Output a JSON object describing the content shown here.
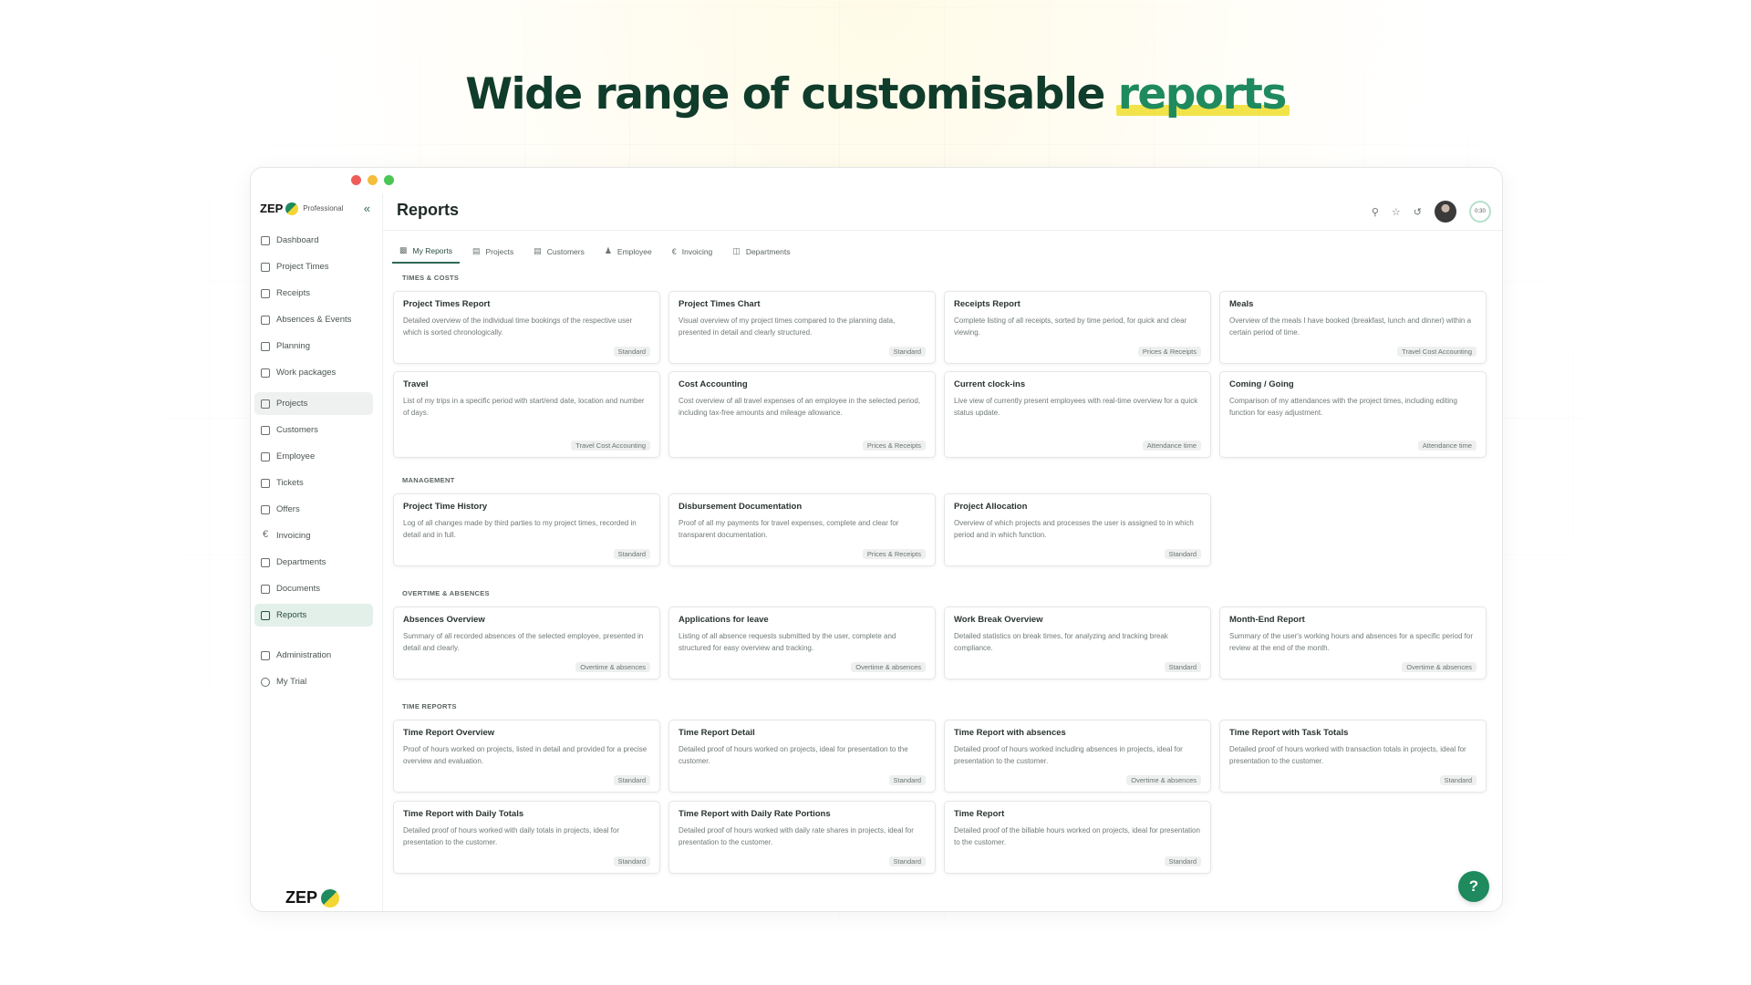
{
  "headline": {
    "prefix": "Wide range of customisable ",
    "highlight": "reports"
  },
  "brand": {
    "name": "ZEP",
    "plan": "Professional",
    "bottom_logo": "ZEP"
  },
  "sidebar": {
    "items": [
      {
        "label": "Dashboard",
        "icon": "grid-icon"
      },
      {
        "label": "Project Times",
        "icon": "clock-calendar-icon"
      },
      {
        "label": "Receipts",
        "icon": "receipt-icon"
      },
      {
        "label": "Absences & Events",
        "icon": "calendar-icon"
      },
      {
        "label": "Planning",
        "icon": "planning-icon"
      },
      {
        "label": "Work packages",
        "icon": "layers-icon"
      },
      {
        "label": "Projects",
        "icon": "projects-icon"
      },
      {
        "label": "Customers",
        "icon": "customers-icon"
      },
      {
        "label": "Employee",
        "icon": "employee-icon"
      },
      {
        "label": "Tickets",
        "icon": "tickets-icon"
      },
      {
        "label": "Offers",
        "icon": "offers-icon"
      },
      {
        "label": "Invoicing",
        "icon": "euro-icon"
      },
      {
        "label": "Departments",
        "icon": "departments-icon"
      },
      {
        "label": "Documents",
        "icon": "folder-icon"
      },
      {
        "label": "Reports",
        "icon": "chart-icon"
      },
      {
        "label": "Administration",
        "icon": "admin-icon"
      },
      {
        "label": "My Trial",
        "icon": "trial-icon"
      }
    ]
  },
  "page": {
    "title": "Reports",
    "timer": "0:30"
  },
  "tabs": [
    {
      "label": "My Reports",
      "icon": "chart-icon"
    },
    {
      "label": "Projects",
      "icon": "projects-icon"
    },
    {
      "label": "Customers",
      "icon": "customers-icon"
    },
    {
      "label": "Employee",
      "icon": "employee-icon"
    },
    {
      "label": "Invoicing",
      "icon": "euro-icon"
    },
    {
      "label": "Departments",
      "icon": "departments-icon"
    }
  ],
  "sections": [
    {
      "label": "TIMES & COSTS",
      "cards": [
        {
          "title": "Project Times Report",
          "desc": "Detailed overview of the individual time bookings of the respective user which is sorted chronologically.",
          "badge": "Standard"
        },
        {
          "title": "Project Times Chart",
          "desc": "Visual overview of my project times compared to the planning data, presented in detail and clearly structured.",
          "badge": "Standard"
        },
        {
          "title": "Receipts Report",
          "desc": "Complete listing of all receipts, sorted by time period, for quick and clear viewing.",
          "badge": "Prices & Receipts"
        },
        {
          "title": "Meals",
          "desc": "Overview of the meals I have booked (breakfast, lunch and dinner) within a certain period of time.",
          "badge": "Travel Cost Accounting"
        },
        {
          "title": "Travel",
          "desc": "List of my trips in a specific period with start/end date, location and number of days.",
          "badge": "Travel Cost Accounting"
        },
        {
          "title": "Cost Accounting",
          "desc": "Cost overview of all travel expenses of an employee in the selected period, including tax-free amounts and mileage allowance.",
          "badge": "Prices & Receipts"
        },
        {
          "title": "Current clock-ins",
          "desc": "Live view of currently present employees with real-time overview for a quick status update.",
          "badge": "Attendance time"
        },
        {
          "title": "Coming / Going",
          "desc": "Comparison of my attendances with the project times, including editing function for easy adjustment.",
          "badge": "Attendance time"
        }
      ]
    },
    {
      "label": "MANAGEMENT",
      "cards": [
        {
          "title": "Project Time History",
          "desc": "Log of all changes made by third parties to my project times, recorded in detail and in full.",
          "badge": "Standard"
        },
        {
          "title": "Disbursement Documentation",
          "desc": "Proof of all my payments for travel expenses, complete and clear for transparent documentation.",
          "badge": "Prices & Receipts"
        },
        {
          "title": "Project Allocation",
          "desc": "Overview of which projects and processes the user is assigned to in which period and in which function.",
          "badge": "Standard"
        }
      ]
    },
    {
      "label": "OVERTIME & ABSENCES",
      "cards": [
        {
          "title": "Absences Overview",
          "desc": "Summary of all recorded absences of the selected employee, presented in detail and clearly.",
          "badge": "Overtime & absences"
        },
        {
          "title": "Applications for leave",
          "desc": "Listing of all absence requests submitted by the user, complete and structured for easy overview and tracking.",
          "badge": "Overtime & absences"
        },
        {
          "title": "Work Break Overview",
          "desc": "Detailed statistics on break times, for analyzing and tracking break compliance.",
          "badge": "Standard"
        },
        {
          "title": "Month-End Report",
          "desc": "Summary of the user's working hours and absences for a specific period for review at the end of the month.",
          "badge": "Overtime & absences"
        }
      ]
    },
    {
      "label": "TIME REPORTS",
      "cards": [
        {
          "title": "Time Report Overview",
          "desc": "Proof of hours worked on projects, listed in detail and provided for a precise overview and evaluation.",
          "badge": "Standard"
        },
        {
          "title": "Time Report Detail",
          "desc": "Detailed proof of hours worked on projects, ideal for presentation to the customer.",
          "badge": "Standard"
        },
        {
          "title": "Time Report with absences",
          "desc": "Detailed proof of hours worked including absences in projects, ideal for presentation to the customer.",
          "badge": "Overtime & absences"
        },
        {
          "title": "Time Report with Task Totals",
          "desc": "Detailed proof of hours worked with transaction totals in projects, ideal for presentation to the customer.",
          "badge": "Standard"
        },
        {
          "title": "Time Report with Daily Totals",
          "desc": "Detailed proof of hours worked with daily totals in projects, ideal for presentation to the customer.",
          "badge": "Standard"
        },
        {
          "title": "Time Report with Daily Rate Portions",
          "desc": "Detailed proof of hours worked with daily rate shares in projects, ideal for presentation to the customer.",
          "badge": "Standard"
        },
        {
          "title": "Time Report",
          "desc": "Detailed proof of the billable hours worked on projects, ideal for presentation to the customer.",
          "badge": "Standard"
        }
      ]
    }
  ],
  "help": {
    "label": "?"
  }
}
